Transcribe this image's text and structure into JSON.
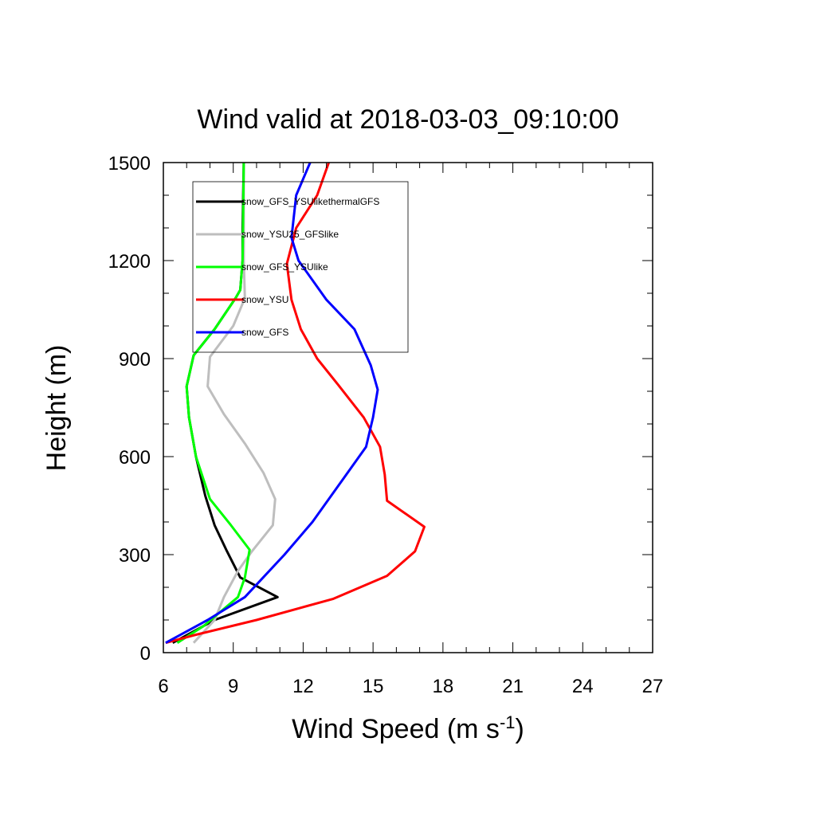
{
  "chart_data": {
    "type": "line",
    "title": "Wind valid at 2018-03-03_09:10:00",
    "xlabel": "Wind Speed (m s",
    "xlabel_superscript": "-1",
    "xlabel_suffix": ")",
    "ylabel": "Height (m)",
    "xlim": [
      6,
      27
    ],
    "ylim": [
      0,
      1500
    ],
    "xticks": [
      6,
      9,
      12,
      15,
      18,
      21,
      24,
      27
    ],
    "yticks": [
      0,
      300,
      600,
      900,
      1200,
      1500
    ],
    "grid": false,
    "legend_position": "top-left",
    "series": [
      {
        "name": "snow_GFS_YSUlikethermalGFS",
        "color": "#000000",
        "points": [
          [
            6.4,
            30
          ],
          [
            8.2,
            100
          ],
          [
            10.9,
            170
          ],
          [
            9.3,
            230
          ],
          [
            8.7,
            315
          ],
          [
            8.2,
            390
          ],
          [
            7.8,
            480
          ],
          [
            7.4,
            600
          ],
          [
            7.1,
            720
          ],
          [
            7.0,
            815
          ],
          [
            7.3,
            910
          ],
          [
            8.2,
            990
          ],
          [
            9.1,
            1085
          ],
          [
            9.3,
            1110
          ],
          [
            9.4,
            1200
          ],
          [
            9.4,
            1300
          ],
          [
            9.45,
            1500
          ]
        ]
      },
      {
        "name": "snow_YSU25_GFSlike",
        "color": "#bebebe",
        "points": [
          [
            7.3,
            30
          ],
          [
            8.2,
            100
          ],
          [
            8.6,
            170
          ],
          [
            9.2,
            250
          ],
          [
            9.8,
            310
          ],
          [
            10.7,
            390
          ],
          [
            10.8,
            470
          ],
          [
            10.3,
            550
          ],
          [
            9.5,
            640
          ],
          [
            8.6,
            730
          ],
          [
            7.9,
            815
          ],
          [
            8.0,
            905
          ],
          [
            9.0,
            1000
          ],
          [
            9.5,
            1085
          ],
          [
            9.45,
            1200
          ],
          [
            9.45,
            1500
          ]
        ]
      },
      {
        "name": "snow_GFS_YSUlike",
        "color": "#00ff00",
        "points": [
          [
            6.6,
            30
          ],
          [
            7.7,
            80
          ],
          [
            9.2,
            170
          ],
          [
            9.5,
            230
          ],
          [
            9.7,
            315
          ],
          [
            8.9,
            390
          ],
          [
            8.0,
            470
          ],
          [
            7.4,
            600
          ],
          [
            7.1,
            720
          ],
          [
            7.0,
            815
          ],
          [
            7.3,
            910
          ],
          [
            8.2,
            990
          ],
          [
            9.1,
            1085
          ],
          [
            9.3,
            1110
          ],
          [
            9.4,
            1200
          ],
          [
            9.45,
            1500
          ]
        ]
      },
      {
        "name": "snow_YSU",
        "color": "#ff0000",
        "points": [
          [
            6.1,
            30
          ],
          [
            7.4,
            55
          ],
          [
            10.0,
            100
          ],
          [
            13.3,
            165
          ],
          [
            15.6,
            235
          ],
          [
            16.8,
            310
          ],
          [
            17.2,
            385
          ],
          [
            15.6,
            465
          ],
          [
            15.5,
            545
          ],
          [
            15.3,
            630
          ],
          [
            14.6,
            720
          ],
          [
            13.5,
            820
          ],
          [
            12.6,
            900
          ],
          [
            11.9,
            990
          ],
          [
            11.5,
            1080
          ],
          [
            11.3,
            1190
          ],
          [
            11.7,
            1300
          ],
          [
            12.6,
            1400
          ],
          [
            13.1,
            1500
          ]
        ]
      },
      {
        "name": "snow_GFS",
        "color": "#0000ff",
        "points": [
          [
            6.1,
            30
          ],
          [
            7.9,
            100
          ],
          [
            9.5,
            170
          ],
          [
            11.2,
            300
          ],
          [
            12.4,
            400
          ],
          [
            13.8,
            540
          ],
          [
            14.7,
            630
          ],
          [
            15.0,
            720
          ],
          [
            15.2,
            805
          ],
          [
            14.9,
            880
          ],
          [
            14.2,
            990
          ],
          [
            13.0,
            1080
          ],
          [
            11.8,
            1200
          ],
          [
            11.5,
            1270
          ],
          [
            11.7,
            1400
          ],
          [
            12.3,
            1500
          ]
        ]
      }
    ]
  }
}
